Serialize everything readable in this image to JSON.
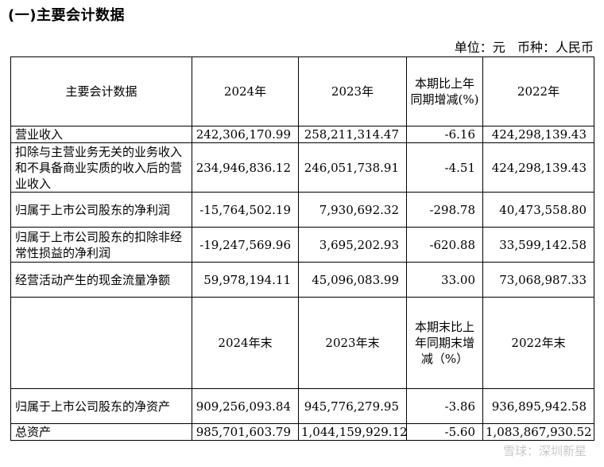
{
  "heading": "(一)主要会计数据",
  "unit_line": "单位：元   币种：人民币",
  "header1": {
    "col0": "主要会计数据",
    "col1": "2024年",
    "col2": "2023年",
    "col3": "本期比上年同期增减(%)",
    "col4": "2022年"
  },
  "rows1": [
    {
      "label": "营业收入",
      "v2024": "242,306,170.99",
      "v2023": "258,211,314.47",
      "chg": "-6.16",
      "v2022": "424,298,139.43"
    },
    {
      "label": "扣除与主营业务无关的业务收入和不具备商业实质的收入后的营业收入",
      "v2024": "234,946,836.12",
      "v2023": "246,051,738.91",
      "chg": "-4.51",
      "v2022": "424,298,139.43"
    },
    {
      "label": "归属于上市公司股东的净利润",
      "v2024": "-15,764,502.19",
      "v2023": "7,930,692.32",
      "chg": "-298.78",
      "v2022": "40,473,558.80"
    },
    {
      "label": "归属于上市公司股东的扣除非经常性损益的净利润",
      "v2024": "-19,247,569.96",
      "v2023": "3,695,202.93",
      "chg": "-620.88",
      "v2022": "33,599,142.58"
    },
    {
      "label": "经营活动产生的现金流量净额",
      "v2024": "59,978,194.11",
      "v2023": "45,096,083.99",
      "chg": "33.00",
      "v2022": "73,068,987.33"
    }
  ],
  "header2": {
    "col0": "",
    "col1": "2024年末",
    "col2": "2023年末",
    "col3": "本期末比上年同期末增减（%）",
    "col4": "2022年末"
  },
  "rows2": [
    {
      "label": "归属于上市公司股东的净资产",
      "v2024": "909,256,093.84",
      "v2023": "945,776,279.95",
      "chg": "-3.86",
      "v2022": "936,895,942.58"
    },
    {
      "label": "总资产",
      "v2024": "985,701,603.79",
      "v2023": "1,044,159,929.12",
      "chg": "-5.60",
      "v2022": "1,083,867,930.52"
    }
  ],
  "watermark": "雪球：深圳新星"
}
